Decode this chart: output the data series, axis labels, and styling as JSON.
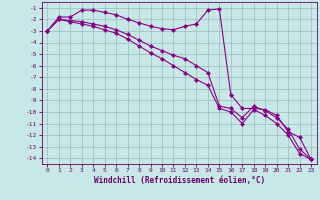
{
  "title": "",
  "xlabel": "Windchill (Refroidissement éolien,°C)",
  "ylabel": "",
  "background_color": "#c8e8e8",
  "grid_color": "#99bbbb",
  "line_color": "#880088",
  "xlim": [
    -0.5,
    23.5
  ],
  "ylim": [
    -14.5,
    -0.5
  ],
  "xticks": [
    0,
    1,
    2,
    3,
    4,
    5,
    6,
    7,
    8,
    9,
    10,
    11,
    12,
    13,
    14,
    15,
    16,
    17,
    18,
    19,
    20,
    21,
    22,
    23
  ],
  "yticks": [
    -1,
    -2,
    -3,
    -4,
    -5,
    -6,
    -7,
    -8,
    -9,
    -10,
    -11,
    -12,
    -13,
    -14
  ],
  "line1_x": [
    0,
    1,
    2,
    3,
    4,
    5,
    6,
    7,
    8,
    9,
    10,
    11,
    12,
    13,
    14,
    15,
    16,
    17,
    18,
    19,
    20,
    21,
    22,
    23
  ],
  "line1_y": [
    -3.0,
    -1.8,
    -1.8,
    -1.2,
    -1.2,
    -1.4,
    -1.6,
    -2.0,
    -2.3,
    -2.6,
    -2.8,
    -2.9,
    -2.6,
    -2.4,
    -1.2,
    -1.1,
    -8.5,
    -9.7,
    -9.7,
    -9.8,
    -10.3,
    -11.7,
    -12.2,
    -14.1
  ],
  "line2_x": [
    0,
    1,
    2,
    3,
    4,
    5,
    6,
    7,
    8,
    9,
    10,
    11,
    12,
    13,
    14,
    15,
    16,
    17,
    18,
    19,
    20,
    21,
    22,
    23
  ],
  "line2_y": [
    -3.0,
    -2.0,
    -2.1,
    -2.2,
    -2.4,
    -2.6,
    -2.9,
    -3.3,
    -3.8,
    -4.3,
    -4.7,
    -5.1,
    -5.4,
    -6.0,
    -6.6,
    -9.5,
    -9.7,
    -10.5,
    -9.5,
    -9.9,
    -10.5,
    -11.5,
    -13.2,
    -14.1
  ],
  "line3_x": [
    0,
    1,
    2,
    3,
    4,
    5,
    6,
    7,
    8,
    9,
    10,
    11,
    12,
    13,
    14,
    15,
    16,
    17,
    18,
    19,
    20,
    21,
    22,
    23
  ],
  "line3_y": [
    -3.0,
    -2.0,
    -2.2,
    -2.4,
    -2.6,
    -2.9,
    -3.2,
    -3.7,
    -4.3,
    -4.9,
    -5.4,
    -6.0,
    -6.6,
    -7.2,
    -7.7,
    -9.7,
    -10.0,
    -11.0,
    -9.8,
    -10.3,
    -11.0,
    -12.0,
    -13.6,
    -14.1
  ]
}
